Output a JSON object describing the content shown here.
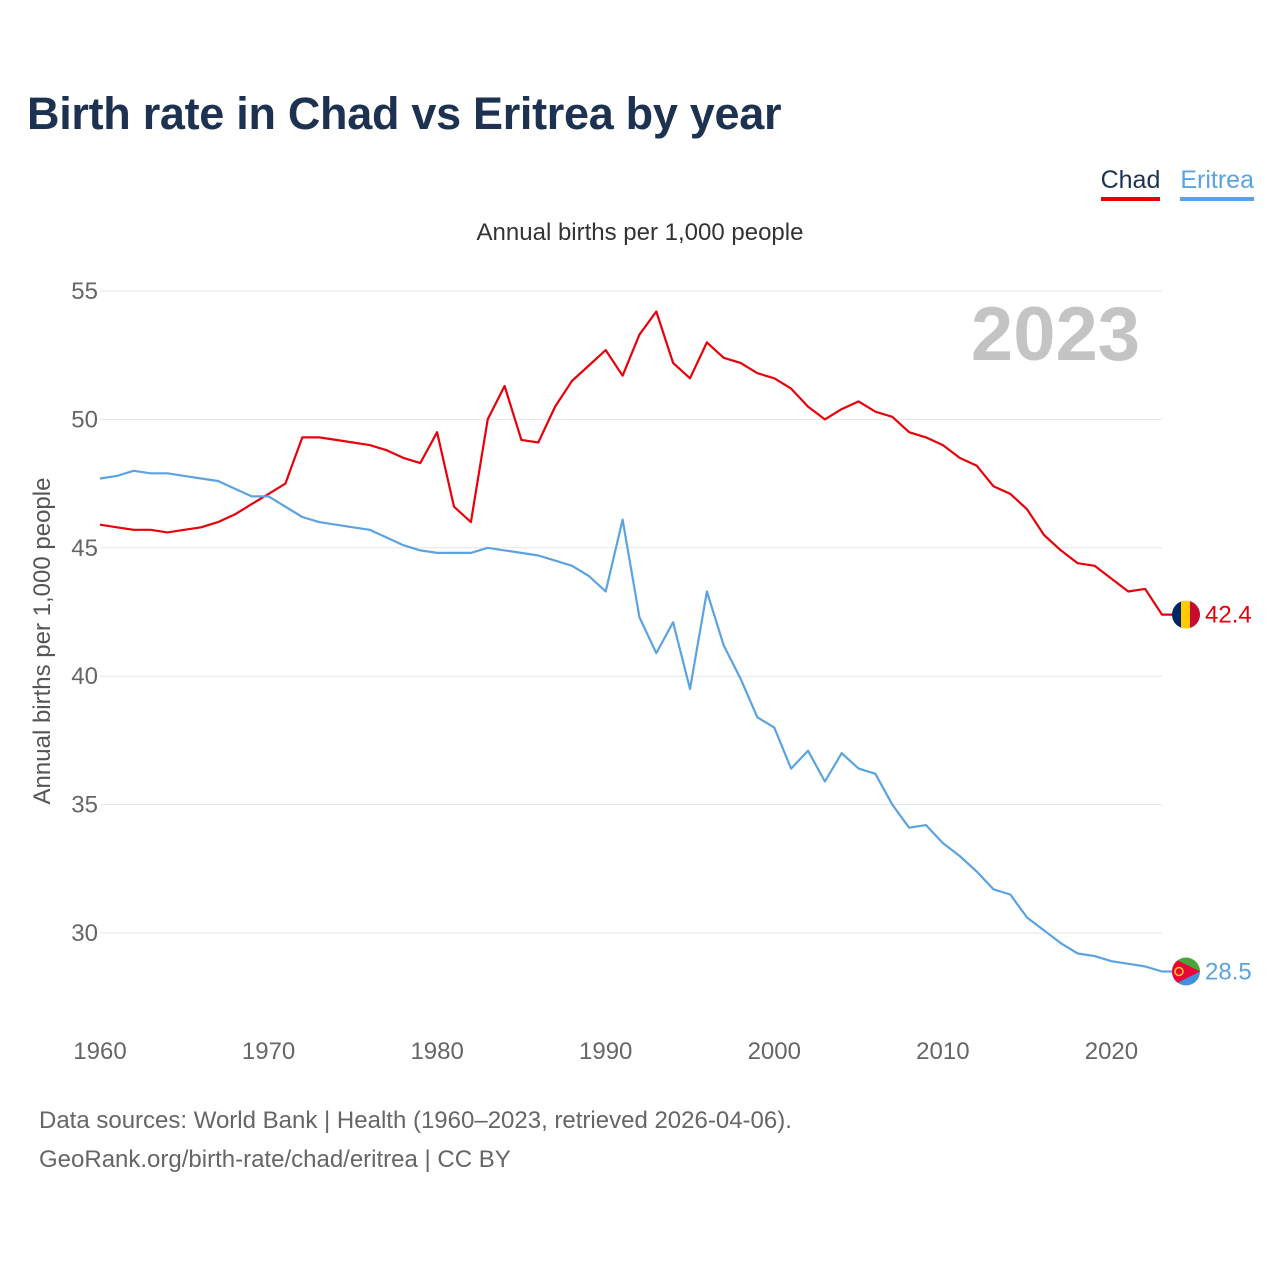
{
  "title": "Birth rate in Chad vs Eritrea by year",
  "subtitle": "Annual births per 1,000 people",
  "year_watermark": "2023",
  "footer": {
    "source": "Data sources: World Bank | Health (1960–2023, retrieved 2026-04-06).",
    "credit": "GeoRank.org/birth-rate/chad/eritrea | CC BY"
  },
  "legend": {
    "items": [
      {
        "label": "Chad",
        "color": "#e8000b"
      },
      {
        "label": "Eritrea",
        "color": "#5ba3e0"
      }
    ]
  },
  "chart_data": {
    "type": "line",
    "title": "Birth rate in Chad vs Eritrea by year",
    "subtitle": "Annual births per 1,000 people",
    "xlabel": "",
    "ylabel": "Annual births per 1,000 people",
    "xlim": [
      1960,
      2023
    ],
    "ylim": [
      27,
      56
    ],
    "xticks": [
      1960,
      1970,
      1980,
      1990,
      2000,
      2010,
      2020
    ],
    "yticks": [
      30,
      35,
      40,
      45,
      50,
      55
    ],
    "grid": true,
    "legend_position": "top-right",
    "x": [
      1960,
      1961,
      1962,
      1963,
      1964,
      1965,
      1966,
      1967,
      1968,
      1969,
      1970,
      1971,
      1972,
      1973,
      1974,
      1975,
      1976,
      1977,
      1978,
      1979,
      1980,
      1981,
      1982,
      1983,
      1984,
      1985,
      1986,
      1987,
      1988,
      1989,
      1990,
      1991,
      1992,
      1993,
      1994,
      1995,
      1996,
      1997,
      1998,
      1999,
      2000,
      2001,
      2002,
      2003,
      2004,
      2005,
      2006,
      2007,
      2008,
      2009,
      2010,
      2011,
      2012,
      2013,
      2014,
      2015,
      2016,
      2017,
      2018,
      2019,
      2020,
      2021,
      2022,
      2023
    ],
    "series": [
      {
        "name": "Chad",
        "color": "#e8000b",
        "end_label": "42.4",
        "values": [
          45.9,
          45.8,
          45.7,
          45.7,
          45.6,
          45.7,
          45.8,
          46.0,
          46.3,
          46.7,
          47.1,
          47.5,
          49.3,
          49.3,
          49.2,
          49.1,
          49.0,
          48.8,
          48.5,
          48.3,
          49.5,
          46.6,
          46.0,
          50.0,
          51.3,
          49.2,
          49.1,
          50.5,
          51.5,
          52.1,
          52.7,
          51.7,
          53.3,
          54.2,
          52.2,
          51.6,
          53.0,
          52.4,
          52.2,
          51.8,
          51.6,
          51.2,
          50.5,
          50.0,
          50.4,
          50.7,
          50.3,
          50.1,
          49.5,
          49.3,
          49.0,
          48.5,
          48.2,
          47.4,
          47.1,
          46.5,
          45.5,
          44.9,
          44.4,
          44.3,
          43.8,
          43.3,
          43.4,
          42.4
        ]
      },
      {
        "name": "Eritrea",
        "color": "#5ba3e0",
        "end_label": "28.5",
        "values": [
          47.7,
          47.8,
          48.0,
          47.9,
          47.9,
          47.8,
          47.7,
          47.6,
          47.3,
          47.0,
          47.0,
          46.6,
          46.2,
          46.0,
          45.9,
          45.8,
          45.7,
          45.4,
          45.1,
          44.9,
          44.8,
          44.8,
          44.8,
          45.0,
          44.9,
          44.8,
          44.7,
          44.5,
          44.3,
          43.9,
          43.3,
          46.1,
          42.3,
          40.9,
          42.1,
          39.5,
          43.3,
          41.2,
          39.9,
          38.4,
          38.0,
          36.4,
          37.1,
          35.9,
          37.0,
          36.4,
          36.2,
          35.0,
          34.1,
          34.2,
          33.5,
          33.0,
          32.4,
          31.7,
          31.5,
          30.6,
          30.1,
          29.6,
          29.2,
          29.1,
          28.9,
          28.8,
          28.7,
          28.5
        ]
      }
    ]
  }
}
